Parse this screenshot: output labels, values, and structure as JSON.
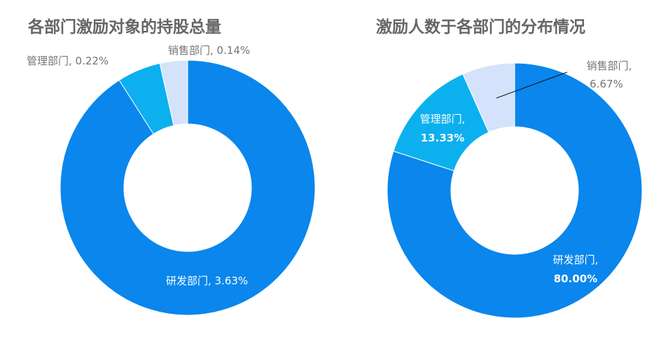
{
  "colors": {
    "rd": "#0a86ec",
    "mgmt": "#0cb0ef",
    "sales": "#d4e3fb",
    "title": "#666666",
    "label_dark": "#757575",
    "label_light": "#ffffff"
  },
  "chart_data": [
    {
      "type": "pie",
      "title": "各部门激励对象的持股总量",
      "categories": [
        "研发部门",
        "管理部门",
        "销售部门"
      ],
      "values": [
        3.63,
        0.22,
        0.14
      ],
      "unit": "%",
      "labels": [
        "研发部门, 3.63%",
        "管理部门, 0.22%",
        "销售部门, 0.14%"
      ]
    },
    {
      "type": "pie",
      "title": "激励人数于各部门的分布情况",
      "categories": [
        "研发部门",
        "管理部门",
        "销售部门"
      ],
      "values": [
        80.0,
        13.33,
        6.67
      ],
      "unit": "%",
      "labels": [
        {
          "name": "研发部门,",
          "value": "80.00%"
        },
        {
          "name": "管理部门,",
          "value": "13.33%"
        },
        {
          "name": "销售部门,",
          "value": "6.67%"
        }
      ]
    }
  ]
}
